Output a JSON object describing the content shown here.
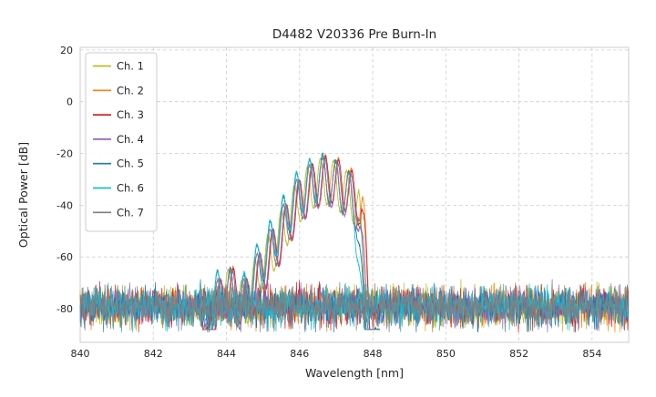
{
  "figure": {
    "title": "D4482 V20336 Pre Burn-In",
    "xlabel": "Wavelength [nm]",
    "ylabel": "Optical Power [dB]"
  },
  "chart_data": {
    "type": "line",
    "title": "D4482 V20336 Pre Burn-In",
    "xlabel": "Wavelength [nm]",
    "ylabel": "Optical Power [dB]",
    "xlim": [
      840,
      855
    ],
    "ylim": [
      -93,
      21
    ],
    "xticks": [
      840,
      842,
      844,
      846,
      848,
      850,
      852,
      854
    ],
    "yticks": [
      20,
      0,
      -20,
      -40,
      -60,
      -80
    ],
    "grid": true,
    "grid_color": "#cccccc",
    "spine_color": "#cccccc",
    "legend_position": "upper left",
    "series": [
      {
        "name": "Ch. 1",
        "color": "#bcbd22",
        "x_shift": 0.02,
        "phase": 0.0,
        "level_offset": -1.0
      },
      {
        "name": "Ch. 2",
        "color": "#ff7f0e",
        "x_shift": 0.12,
        "phase": 0.03,
        "level_offset": 0.0
      },
      {
        "name": "Ch. 3",
        "color": "#d62728",
        "x_shift": 0.1,
        "phase": 0.06,
        "level_offset": -0.5
      },
      {
        "name": "Ch. 4",
        "color": "#9467bd",
        "x_shift": 0.04,
        "phase": 0.1,
        "level_offset": -1.5
      },
      {
        "name": "Ch. 5",
        "color": "#1f77b4",
        "x_shift": -0.06,
        "phase": 0.14,
        "level_offset": 0.5
      },
      {
        "name": "Ch. 6",
        "color": "#17becf",
        "x_shift": -0.1,
        "phase": 0.18,
        "level_offset": 0.0
      },
      {
        "name": "Ch. 7",
        "color": "#7f7f7f",
        "x_shift": 0.0,
        "phase": 0.08,
        "level_offset": -1.0
      }
    ],
    "signal_envelope_db": [
      [
        843.35,
        -88
      ],
      [
        843.6,
        -74
      ],
      [
        843.8,
        -66
      ],
      [
        844.0,
        -63.5
      ],
      [
        844.15,
        -64.5
      ],
      [
        844.35,
        -69
      ],
      [
        844.55,
        -67
      ],
      [
        844.75,
        -60
      ],
      [
        844.95,
        -54.5
      ],
      [
        845.15,
        -49.5
      ],
      [
        845.35,
        -44.5
      ],
      [
        845.55,
        -39
      ],
      [
        845.75,
        -33.5
      ],
      [
        845.95,
        -28.5
      ],
      [
        846.15,
        -25
      ],
      [
        846.35,
        -22.5
      ],
      [
        846.55,
        -20.8
      ],
      [
        846.75,
        -20.8
      ],
      [
        846.95,
        -22
      ],
      [
        847.15,
        -24
      ],
      [
        847.35,
        -26.5
      ],
      [
        847.5,
        -28.5
      ],
      [
        847.6,
        -32
      ],
      [
        847.7,
        -50
      ],
      [
        847.8,
        -72
      ],
      [
        847.9,
        -88
      ]
    ],
    "fringes": {
      "period_nm": 0.36,
      "depth_db": 18,
      "center_nm": 846.55
    },
    "noise_floor": {
      "mean_db": -79,
      "spread_db": 11,
      "min_db": -89,
      "step_nm": 0.013
    },
    "signal_range_nm": [
      843.35,
      848.2
    ],
    "peak_max_db": -20.8
  }
}
